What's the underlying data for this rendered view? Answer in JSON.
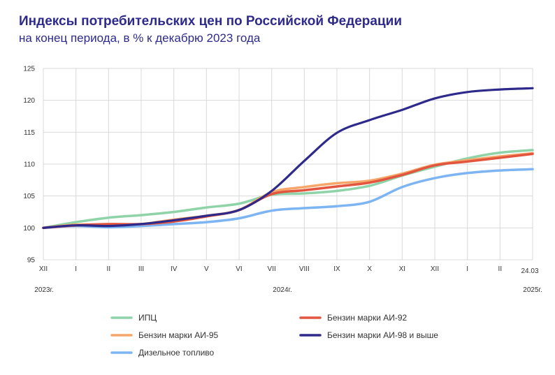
{
  "header": {
    "title": "Индексы потребительских цен по Российской Федерации",
    "subtitle": "на конец периода, в % к декабрю 2023 года"
  },
  "chart_data": {
    "type": "line",
    "title": "Индексы потребительских цен по Российской Федерации",
    "subtitle": "на конец периода, в % к декабрю 2023 года",
    "x": [
      "XII",
      "I",
      "II",
      "III",
      "IV",
      "V",
      "VI",
      "VII",
      "VIII",
      "IX",
      "X",
      "XI",
      "XII",
      "I",
      "II",
      "24.03"
    ],
    "year_labels": [
      "2023г.",
      "2024г.",
      "2025г."
    ],
    "ylim": [
      95,
      125
    ],
    "yticks": [
      95,
      100,
      105,
      110,
      115,
      120,
      125
    ],
    "grid": true,
    "legend_position": "bottom",
    "series": [
      {
        "name": "ИПЦ",
        "color": "#8fd4a8",
        "values": [
          100.0,
          100.9,
          101.6,
          102.0,
          102.5,
          103.2,
          103.8,
          105.2,
          105.4,
          105.8,
          106.6,
          108.2,
          109.6,
          110.9,
          111.8,
          112.2
        ]
      },
      {
        "name": "Бензин марки АИ-92",
        "color": "#e2553f",
        "values": [
          100.0,
          100.4,
          100.6,
          100.6,
          101.0,
          101.8,
          102.8,
          105.3,
          105.9,
          106.5,
          107.1,
          108.3,
          109.8,
          110.4,
          111.0,
          111.6
        ]
      },
      {
        "name": "Бензин марки АИ-95",
        "color": "#f7a66a",
        "values": [
          100.0,
          100.5,
          100.5,
          100.6,
          101.3,
          101.9,
          102.8,
          105.6,
          106.4,
          107.0,
          107.4,
          108.5,
          109.9,
          110.6,
          111.2,
          111.7
        ]
      },
      {
        "name": "Бензин марки АИ-98 и выше",
        "color": "#2d2a8c",
        "values": [
          100.0,
          100.4,
          100.3,
          100.6,
          101.2,
          101.9,
          102.8,
          105.8,
          110.5,
          114.9,
          116.9,
          118.5,
          120.3,
          121.3,
          121.7,
          121.9
        ]
      },
      {
        "name": "Дизельное топливо",
        "color": "#7db4f2",
        "values": [
          100.0,
          100.3,
          100.1,
          100.3,
          100.6,
          100.9,
          101.5,
          102.7,
          103.1,
          103.4,
          104.1,
          106.4,
          107.8,
          108.6,
          109.0,
          109.2
        ]
      }
    ]
  }
}
